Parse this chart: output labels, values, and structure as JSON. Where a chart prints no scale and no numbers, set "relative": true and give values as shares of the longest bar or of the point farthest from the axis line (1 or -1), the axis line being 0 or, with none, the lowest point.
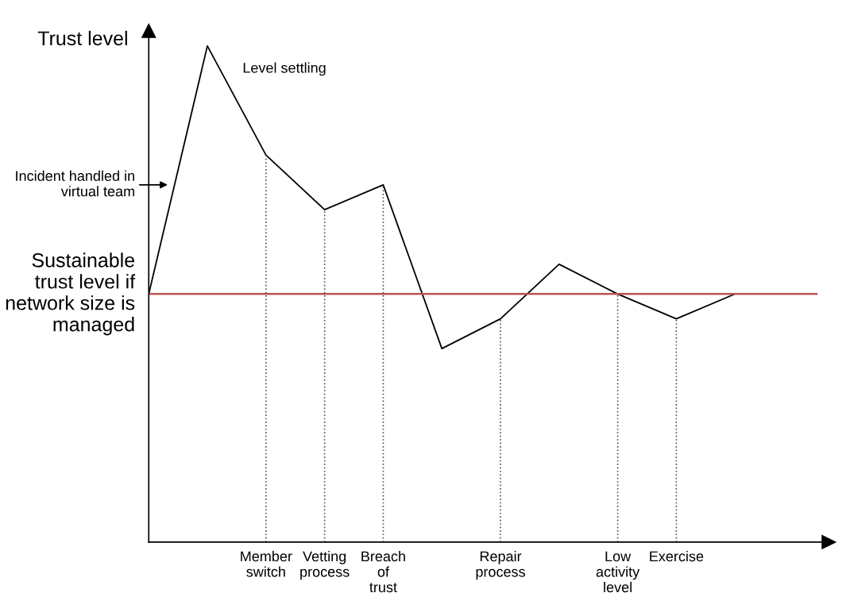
{
  "chart_data": {
    "type": "line",
    "relative": true,
    "ylabel": "Trust level",
    "categories": [
      null,
      null,
      "Member switch",
      "Vetting process",
      "Breach of trust",
      null,
      "Repair process",
      null,
      "Low activity level",
      "Exercise",
      null
    ],
    "series": [
      {
        "color": "#000000",
        "values": [
          0.5,
          1.0,
          0.78,
          0.67,
          0.72,
          0.39,
          0.45,
          0.56,
          0.5,
          0.45,
          0.5
        ]
      }
    ],
    "ref_lines": [
      {
        "axis": "y",
        "value": 0.5,
        "label": "Sustainable trust level if network size is managed",
        "color": "#b85450"
      },
      {
        "axis": "x",
        "value": "Member switch",
        "line_style": "dotted",
        "color": "#555555"
      },
      {
        "axis": "x",
        "value": "Vetting process",
        "line_style": "dotted",
        "color": "#555555"
      },
      {
        "axis": "x",
        "value": "Breach of trust",
        "line_style": "dotted",
        "color": "#555555"
      },
      {
        "axis": "x",
        "value": "Repair process",
        "line_style": "dotted",
        "color": "#555555"
      },
      {
        "axis": "x",
        "value": "Low activity level",
        "line_style": "dotted",
        "color": "#555555"
      },
      {
        "axis": "x",
        "value": "Exercise",
        "line_style": "dotted",
        "color": "#555555"
      }
    ],
    "annotations": [
      "Level settling",
      "Incident handled in virtual team"
    ],
    "legend": false,
    "grid": false,
    "marker": "none",
    "line_style": "solid"
  }
}
